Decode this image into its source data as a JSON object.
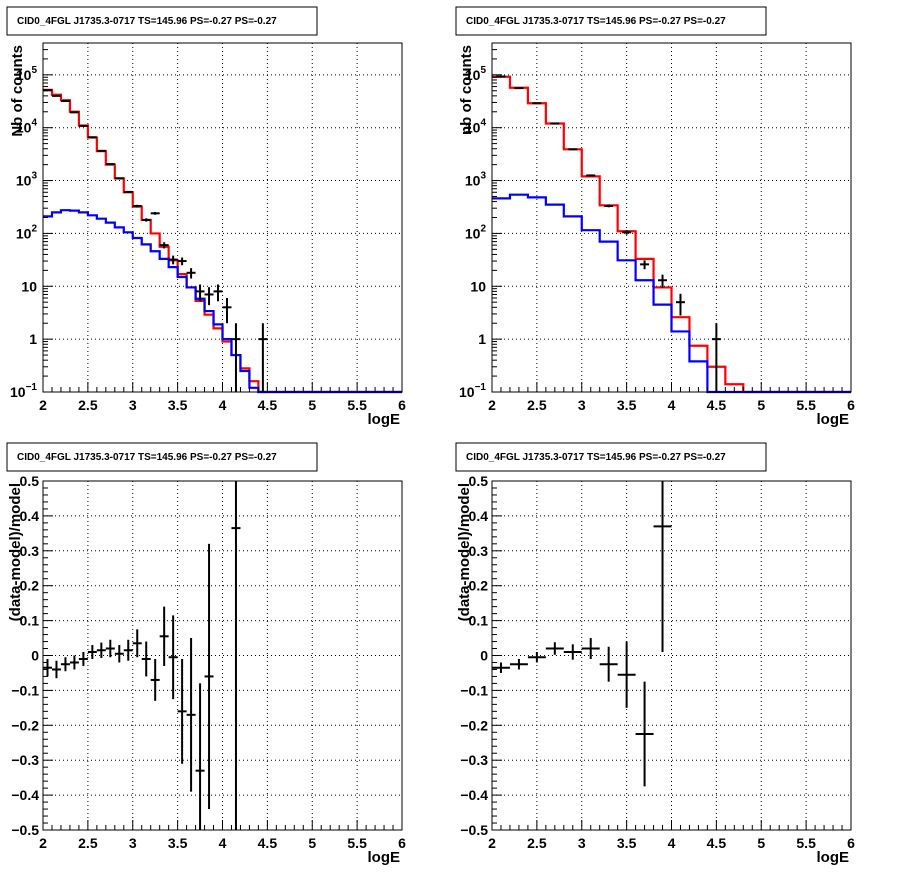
{
  "chart_data": [
    {
      "panel": "top-left",
      "type": "line",
      "title": "CID0_4FGL J1735.3-0717 TS=145.96 PS=-0.27 PS=-0.27",
      "xlabel": "logE",
      "ylabel": "Nb of counts",
      "xlim": [
        2,
        6
      ],
      "ylim": [
        0.1,
        400000
      ],
      "yscale": "log",
      "grid": true,
      "x_ticks": [
        "2",
        "2.5",
        "3",
        "3.5",
        "4",
        "4.5",
        "5",
        "5.5",
        "6"
      ],
      "y_ticks": [
        {
          "value": 0.1,
          "base": "10",
          "exp": "−1"
        },
        {
          "value": 1,
          "base": "1",
          "exp": ""
        },
        {
          "value": 10,
          "base": "10",
          "exp": ""
        },
        {
          "value": 100,
          "base": "10",
          "exp": "2"
        },
        {
          "value": 1000,
          "base": "10",
          "exp": "3"
        },
        {
          "value": 10000,
          "base": "10",
          "exp": "4"
        },
        {
          "value": 100000,
          "base": "10",
          "exp": "5"
        }
      ],
      "bin_edges": [
        2.0,
        2.1,
        2.2,
        2.3,
        2.4,
        2.5,
        2.6,
        2.7,
        2.8,
        2.9,
        3.0,
        3.1,
        3.2,
        3.3,
        3.4,
        3.5,
        3.6,
        3.7,
        3.8,
        3.9,
        4.0,
        4.1,
        4.2,
        4.3,
        4.4,
        4.5,
        4.6,
        4.7,
        4.8,
        4.9,
        5.0,
        5.1,
        5.2,
        5.3,
        5.4,
        5.5,
        5.6,
        5.7,
        5.8,
        5.9,
        6.0
      ],
      "series": [
        {
          "color": "#ff0000",
          "values": [
            52000,
            42000,
            33000,
            20000,
            11000,
            6500,
            3600,
            2000,
            1100,
            600,
            320,
            180,
            100,
            56,
            31,
            17,
            9.5,
            5.3,
            2.9,
            1.6,
            0.9,
            0.5,
            0.28,
            0.16,
            0.1,
            0.1,
            0.1,
            0.1,
            0.1,
            0.1,
            0.1,
            0.1,
            0.1,
            0.1,
            0.1,
            0.1,
            0.1,
            0.1,
            0.1,
            0.1
          ]
        },
        {
          "color": "#0000ff",
          "values": [
            210,
            250,
            275,
            270,
            250,
            220,
            190,
            160,
            130,
            105,
            82,
            62,
            46,
            33,
            23,
            15,
            9.5,
            5.8,
            3.4,
            1.9,
            1.0,
            0.5,
            0.25,
            0.12,
            0.1,
            0.1,
            0.1,
            0.1,
            0.1,
            0.1,
            0.1,
            0.1,
            0.1,
            0.1,
            0.1,
            0.1,
            0.1,
            0.1,
            0.1,
            0.1
          ]
        }
      ],
      "points": [
        {
          "x": 2.05,
          "y": 51000,
          "yerr_lo": 220,
          "yerr_hi": 220
        },
        {
          "x": 2.15,
          "y": 40000,
          "yerr_lo": 200,
          "yerr_hi": 200
        },
        {
          "x": 2.25,
          "y": 32000,
          "yerr_lo": 180,
          "yerr_hi": 180
        },
        {
          "x": 2.35,
          "y": 19500,
          "yerr_lo": 140,
          "yerr_hi": 140
        },
        {
          "x": 2.45,
          "y": 10800,
          "yerr_lo": 100,
          "yerr_hi": 100
        },
        {
          "x": 2.55,
          "y": 6600,
          "yerr_lo": 80,
          "yerr_hi": 80
        },
        {
          "x": 2.65,
          "y": 3650,
          "yerr_lo": 60,
          "yerr_hi": 60
        },
        {
          "x": 2.75,
          "y": 2050,
          "yerr_lo": 45,
          "yerr_hi": 45
        },
        {
          "x": 2.85,
          "y": 1100,
          "yerr_lo": 33,
          "yerr_hi": 33
        },
        {
          "x": 2.95,
          "y": 610,
          "yerr_lo": 25,
          "yerr_hi": 25
        },
        {
          "x": 3.05,
          "y": 330,
          "yerr_lo": 18,
          "yerr_hi": 18
        },
        {
          "x": 3.15,
          "y": 180,
          "yerr_lo": 13,
          "yerr_hi": 13
        },
        {
          "x": 3.25,
          "y": 240,
          "yerr_lo": 15,
          "yerr_hi": 15
        },
        {
          "x": 3.35,
          "y": 60,
          "yerr_lo": 8,
          "yerr_hi": 8
        },
        {
          "x": 3.45,
          "y": 32,
          "yerr_lo": 6,
          "yerr_hi": 6
        },
        {
          "x": 3.55,
          "y": 30,
          "yerr_lo": 5,
          "yerr_hi": 5
        },
        {
          "x": 3.65,
          "y": 18,
          "yerr_lo": 4,
          "yerr_hi": 4
        },
        {
          "x": 3.75,
          "y": 8,
          "yerr_lo": 2.8,
          "yerr_hi": 2.8
        },
        {
          "x": 3.85,
          "y": 7,
          "yerr_lo": 2.6,
          "yerr_hi": 2.6
        },
        {
          "x": 3.95,
          "y": 8,
          "yerr_lo": 2.8,
          "yerr_hi": 2.8
        },
        {
          "x": 4.05,
          "y": 4,
          "yerr_lo": 2.0,
          "yerr_hi": 2.0
        },
        {
          "x": 4.15,
          "y": 1,
          "yerr_lo": 0.9,
          "yerr_hi": 1.0
        },
        {
          "x": 4.45,
          "y": 1,
          "yerr_lo": 0.9,
          "yerr_hi": 1.0
        }
      ]
    },
    {
      "panel": "top-right",
      "type": "line",
      "title": "CID0_4FGL J1735.3-0717 TS=145.96 PS=-0.27 PS=-0.27",
      "xlabel": "logE",
      "ylabel": "nb of counts",
      "xlim": [
        2,
        6
      ],
      "ylim": [
        0.1,
        400000
      ],
      "yscale": "log",
      "grid": true,
      "x_ticks": [
        "2",
        "2.5",
        "3",
        "3.5",
        "4",
        "4.5",
        "5",
        "5.5",
        "6"
      ],
      "y_ticks": [
        {
          "value": 0.1,
          "base": "10",
          "exp": "−1"
        },
        {
          "value": 1,
          "base": "1",
          "exp": ""
        },
        {
          "value": 10,
          "base": "10",
          "exp": ""
        },
        {
          "value": 100,
          "base": "10",
          "exp": "2"
        },
        {
          "value": 1000,
          "base": "10",
          "exp": "3"
        },
        {
          "value": 10000,
          "base": "10",
          "exp": "4"
        },
        {
          "value": 100000,
          "base": "10",
          "exp": "5"
        }
      ],
      "bin_edges": [
        2.0,
        2.2,
        2.4,
        2.6,
        2.8,
        3.0,
        3.2,
        3.4,
        3.6,
        3.8,
        4.0,
        4.2,
        4.4,
        4.6,
        4.8,
        5.0,
        5.2,
        5.4,
        5.6,
        5.8,
        6.0
      ],
      "series": [
        {
          "color": "#ff0000",
          "values": [
            92000,
            57000,
            29000,
            12000,
            3900,
            1200,
            340,
            110,
            33,
            9.5,
            2.6,
            0.75,
            0.3,
            0.14,
            0.1,
            0.1,
            0.1,
            0.1,
            0.1,
            0.1
          ]
        },
        {
          "color": "#0000ff",
          "values": [
            460,
            540,
            480,
            350,
            210,
            115,
            70,
            31,
            13,
            4.5,
            1.4,
            0.38,
            0.1,
            0.1,
            0.1,
            0.1,
            0.1,
            0.1,
            0.1,
            0.1
          ]
        }
      ],
      "points": [
        {
          "x": 2.1,
          "y": 93000,
          "yerr_lo": 300,
          "yerr_hi": 300
        },
        {
          "x": 2.3,
          "y": 56000,
          "yerr_lo": 240,
          "yerr_hi": 240
        },
        {
          "x": 2.5,
          "y": 29000,
          "yerr_lo": 170,
          "yerr_hi": 170
        },
        {
          "x": 2.7,
          "y": 12000,
          "yerr_lo": 110,
          "yerr_hi": 110
        },
        {
          "x": 2.9,
          "y": 3900,
          "yerr_lo": 62,
          "yerr_hi": 62
        },
        {
          "x": 3.1,
          "y": 1250,
          "yerr_lo": 35,
          "yerr_hi": 35
        },
        {
          "x": 3.3,
          "y": 330,
          "yerr_lo": 18,
          "yerr_hi": 18
        },
        {
          "x": 3.5,
          "y": 105,
          "yerr_lo": 10,
          "yerr_hi": 10
        },
        {
          "x": 3.7,
          "y": 26,
          "yerr_lo": 5,
          "yerr_hi": 5
        },
        {
          "x": 3.9,
          "y": 13,
          "yerr_lo": 3.6,
          "yerr_hi": 3.6
        },
        {
          "x": 4.1,
          "y": 5,
          "yerr_lo": 2.2,
          "yerr_hi": 2.2
        },
        {
          "x": 4.5,
          "y": 1,
          "yerr_lo": 0.9,
          "yerr_hi": 1.0
        }
      ]
    },
    {
      "panel": "bottom-left",
      "type": "scatter",
      "title": "CID0_4FGL J1735.3-0717 TS=145.96 PS=-0.27 PS=-0.27",
      "xlabel": "logE",
      "ylabel": "(data-model)/model",
      "xlim": [
        2,
        6
      ],
      "ylim": [
        -0.5,
        0.5
      ],
      "grid": true,
      "x_ticks": [
        "2",
        "2.5",
        "3",
        "3.5",
        "4",
        "4.5",
        "5",
        "5.5",
        "6"
      ],
      "y_ticks": [
        "−0.5",
        "−0.4",
        "−0.3",
        "−0.2",
        "−0.1",
        "0",
        "0.1",
        "0.2",
        "0.3",
        "0.4",
        "0.5"
      ],
      "points": [
        {
          "x": 2.05,
          "y": -0.035,
          "xerr": 0.05,
          "yerr": 0.025
        },
        {
          "x": 2.15,
          "y": -0.04,
          "xerr": 0.05,
          "yerr": 0.025
        },
        {
          "x": 2.25,
          "y": -0.025,
          "xerr": 0.05,
          "yerr": 0.02
        },
        {
          "x": 2.35,
          "y": -0.02,
          "xerr": 0.05,
          "yerr": 0.02
        },
        {
          "x": 2.45,
          "y": -0.01,
          "xerr": 0.05,
          "yerr": 0.02
        },
        {
          "x": 2.55,
          "y": 0.01,
          "xerr": 0.05,
          "yerr": 0.02
        },
        {
          "x": 2.65,
          "y": 0.015,
          "xerr": 0.05,
          "yerr": 0.022
        },
        {
          "x": 2.75,
          "y": 0.02,
          "xerr": 0.05,
          "yerr": 0.025
        },
        {
          "x": 2.85,
          "y": 0.005,
          "xerr": 0.05,
          "yerr": 0.025
        },
        {
          "x": 2.95,
          "y": 0.015,
          "xerr": 0.05,
          "yerr": 0.03
        },
        {
          "x": 3.05,
          "y": 0.035,
          "xerr": 0.05,
          "yerr": 0.04
        },
        {
          "x": 3.15,
          "y": -0.01,
          "xerr": 0.05,
          "yerr": 0.05
        },
        {
          "x": 3.25,
          "y": -0.07,
          "xerr": 0.05,
          "yerr": 0.06
        },
        {
          "x": 3.35,
          "y": 0.055,
          "xerr": 0.05,
          "yerr": 0.085
        },
        {
          "x": 3.45,
          "y": -0.005,
          "xerr": 0.05,
          "yerr": 0.12
        },
        {
          "x": 3.55,
          "y": -0.16,
          "xerr": 0.05,
          "yerr": 0.15
        },
        {
          "x": 3.65,
          "y": -0.17,
          "xerr": 0.05,
          "yerr": 0.22
        },
        {
          "x": 3.75,
          "y": -0.33,
          "xerr": 0.05,
          "yerr": 0.25
        },
        {
          "x": 3.85,
          "y": -0.06,
          "xerr": 0.05,
          "yerr": 0.38
        },
        {
          "x": 4.15,
          "y": 0.365,
          "xerr": 0.05,
          "yerr": 0.9
        }
      ]
    },
    {
      "panel": "bottom-right",
      "type": "scatter",
      "title": "CID0_4FGL J1735.3-0717 TS=145.96 PS=-0.27 PS=-0.27",
      "xlabel": "logE",
      "ylabel": "(data-model)/model",
      "xlim": [
        2,
        6
      ],
      "ylim": [
        -0.5,
        0.5
      ],
      "grid": true,
      "x_ticks": [
        "2",
        "2.5",
        "3",
        "3.5",
        "4",
        "4.5",
        "5",
        "5.5",
        "6"
      ],
      "y_ticks": [
        "−0.5",
        "−0.4",
        "−0.3",
        "−0.2",
        "−0.1",
        "0",
        "0.1",
        "0.2",
        "0.3",
        "0.4",
        "0.5"
      ],
      "points": [
        {
          "x": 2.1,
          "y": -0.035,
          "xerr": 0.1,
          "yerr": 0.015
        },
        {
          "x": 2.3,
          "y": -0.025,
          "xerr": 0.1,
          "yerr": 0.015
        },
        {
          "x": 2.5,
          "y": -0.005,
          "xerr": 0.1,
          "yerr": 0.015
        },
        {
          "x": 2.7,
          "y": 0.02,
          "xerr": 0.1,
          "yerr": 0.018
        },
        {
          "x": 2.9,
          "y": 0.01,
          "xerr": 0.1,
          "yerr": 0.022
        },
        {
          "x": 3.1,
          "y": 0.02,
          "xerr": 0.1,
          "yerr": 0.03
        },
        {
          "x": 3.3,
          "y": -0.025,
          "xerr": 0.1,
          "yerr": 0.05
        },
        {
          "x": 3.5,
          "y": -0.055,
          "xerr": 0.1,
          "yerr": 0.095
        },
        {
          "x": 3.7,
          "y": -0.225,
          "xerr": 0.1,
          "yerr": 0.15
        },
        {
          "x": 3.9,
          "y": 0.37,
          "xerr": 0.1,
          "yerr": 0.36
        }
      ]
    }
  ]
}
